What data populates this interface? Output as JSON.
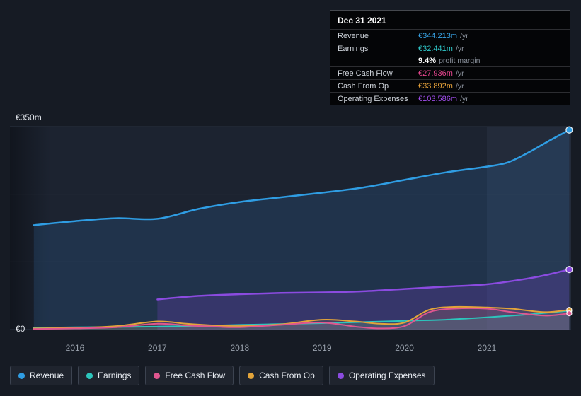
{
  "tooltip": {
    "date": "Dec 31 2021",
    "rows": [
      {
        "label": "Revenue",
        "value": "€344.213m",
        "suffix": "/yr",
        "color": "#38a5e9",
        "bold": false,
        "divider": true
      },
      {
        "label": "Earnings",
        "value": "€32.441m",
        "suffix": "/yr",
        "color": "#2fc7c9",
        "bold": false,
        "divider": false
      },
      {
        "label": "",
        "value": "9.4%",
        "suffix": "profit margin",
        "color": "#ffffff",
        "bold": true,
        "divider": true
      },
      {
        "label": "Free Cash Flow",
        "value": "€27.936m",
        "suffix": "/yr",
        "color": "#e8468f",
        "bold": false,
        "divider": true
      },
      {
        "label": "Cash From Op",
        "value": "€33.892m",
        "suffix": "/yr",
        "color": "#e9a43b",
        "bold": false,
        "divider": true
      },
      {
        "label": "Operating Expenses",
        "value": "€103.586m",
        "suffix": "/yr",
        "color": "#a44ff0",
        "bold": false,
        "divider": false
      }
    ]
  },
  "legend": {
    "items": [
      {
        "label": "Revenue",
        "color": "#2f9de3"
      },
      {
        "label": "Earnings",
        "color": "#2cc5bc"
      },
      {
        "label": "Free Cash Flow",
        "color": "#e0568f"
      },
      {
        "label": "Cash From Op",
        "color": "#e3a43a"
      },
      {
        "label": "Operating Expenses",
        "color": "#8b4be0"
      }
    ]
  },
  "chart_data": {
    "type": "area",
    "currency": "EUR",
    "legend_position": "bottom",
    "x_ticks": [
      2016,
      2017,
      2018,
      2019,
      2020,
      2021
    ],
    "y_axis": {
      "min": 0,
      "max": 350,
      "label_max": "€350m",
      "label_zero": "€0"
    },
    "gridlines": [
      {
        "value": 350,
        "major": true
      },
      {
        "value": 233.3,
        "major": false
      },
      {
        "value": 116.7,
        "major": false
      },
      {
        "value": 0,
        "major": true
      }
    ],
    "highlight_band": [
      2021,
      2022.05
    ],
    "series": [
      {
        "name": "Revenue",
        "color": "#2f9de3",
        "fill_color": "rgba(62,150,235,0.15)",
        "width": 2.5,
        "dot_r": 4.5,
        "x": [
          2015.5,
          2016,
          2016.5,
          2017,
          2017.5,
          2018,
          2018.5,
          2019,
          2019.5,
          2020,
          2020.5,
          2021,
          2021.25,
          2021.5,
          2021.75,
          2022
        ],
        "values": [
          180,
          187,
          192,
          191,
          208,
          220,
          228,
          236,
          245,
          258,
          271,
          281,
          288,
          305,
          325,
          344.213
        ]
      },
      {
        "name": "Operating Expenses",
        "color": "#8b4be0",
        "fill_color": "rgba(118,62,200,0.25)",
        "width": 2.5,
        "dot_r": 4.5,
        "x": [
          2017,
          2017.5,
          2018,
          2018.5,
          2019,
          2019.5,
          2020,
          2020.5,
          2021,
          2021.5,
          2021.75,
          2022
        ],
        "values": [
          52,
          58,
          61,
          63,
          64,
          66,
          70,
          74,
          78,
          88,
          95,
          103.586
        ]
      },
      {
        "name": "Earnings",
        "color": "#2cc5bc",
        "fill_color": "rgba(44,197,188,0.16)",
        "width": 2,
        "dot_r": 3.5,
        "x": [
          2015.5,
          2016,
          2017,
          2018,
          2019,
          2020,
          2020.5,
          2021,
          2021.5,
          2022
        ],
        "values": [
          3,
          4,
          5,
          8,
          11,
          15,
          17,
          21,
          26,
          32.441
        ]
      },
      {
        "name": "Cash From Op",
        "color": "#e3a43a",
        "fill_color": "rgba(227,164,58,0.10)",
        "width": 2,
        "dot_r": 3.5,
        "x": [
          2015.5,
          2016,
          2016.5,
          2017,
          2017.35,
          2017.7,
          2018,
          2018.5,
          2019,
          2019.4,
          2019.7,
          2020,
          2020.3,
          2020.6,
          2021,
          2021.3,
          2021.7,
          2022
        ],
        "values": [
          2,
          3,
          6,
          14,
          10,
          7,
          6,
          9,
          17,
          14,
          10,
          12,
          34,
          39,
          38,
          36,
          30,
          33.892
        ]
      },
      {
        "name": "Free Cash Flow",
        "color": "#e0568f",
        "fill_color": "rgba(224,86,143,0.10)",
        "width": 2,
        "dot_r": 3.5,
        "x": [
          2015.5,
          2016,
          2016.5,
          2017,
          2017.35,
          2017.7,
          2018,
          2018.5,
          2019,
          2019.4,
          2019.7,
          2020,
          2020.3,
          2020.6,
          2021,
          2021.3,
          2021.7,
          2022
        ],
        "values": [
          1,
          2,
          4,
          10,
          7,
          5,
          4,
          8,
          12,
          5,
          2,
          6,
          30,
          36,
          36,
          30,
          24,
          27.936
        ]
      }
    ]
  }
}
